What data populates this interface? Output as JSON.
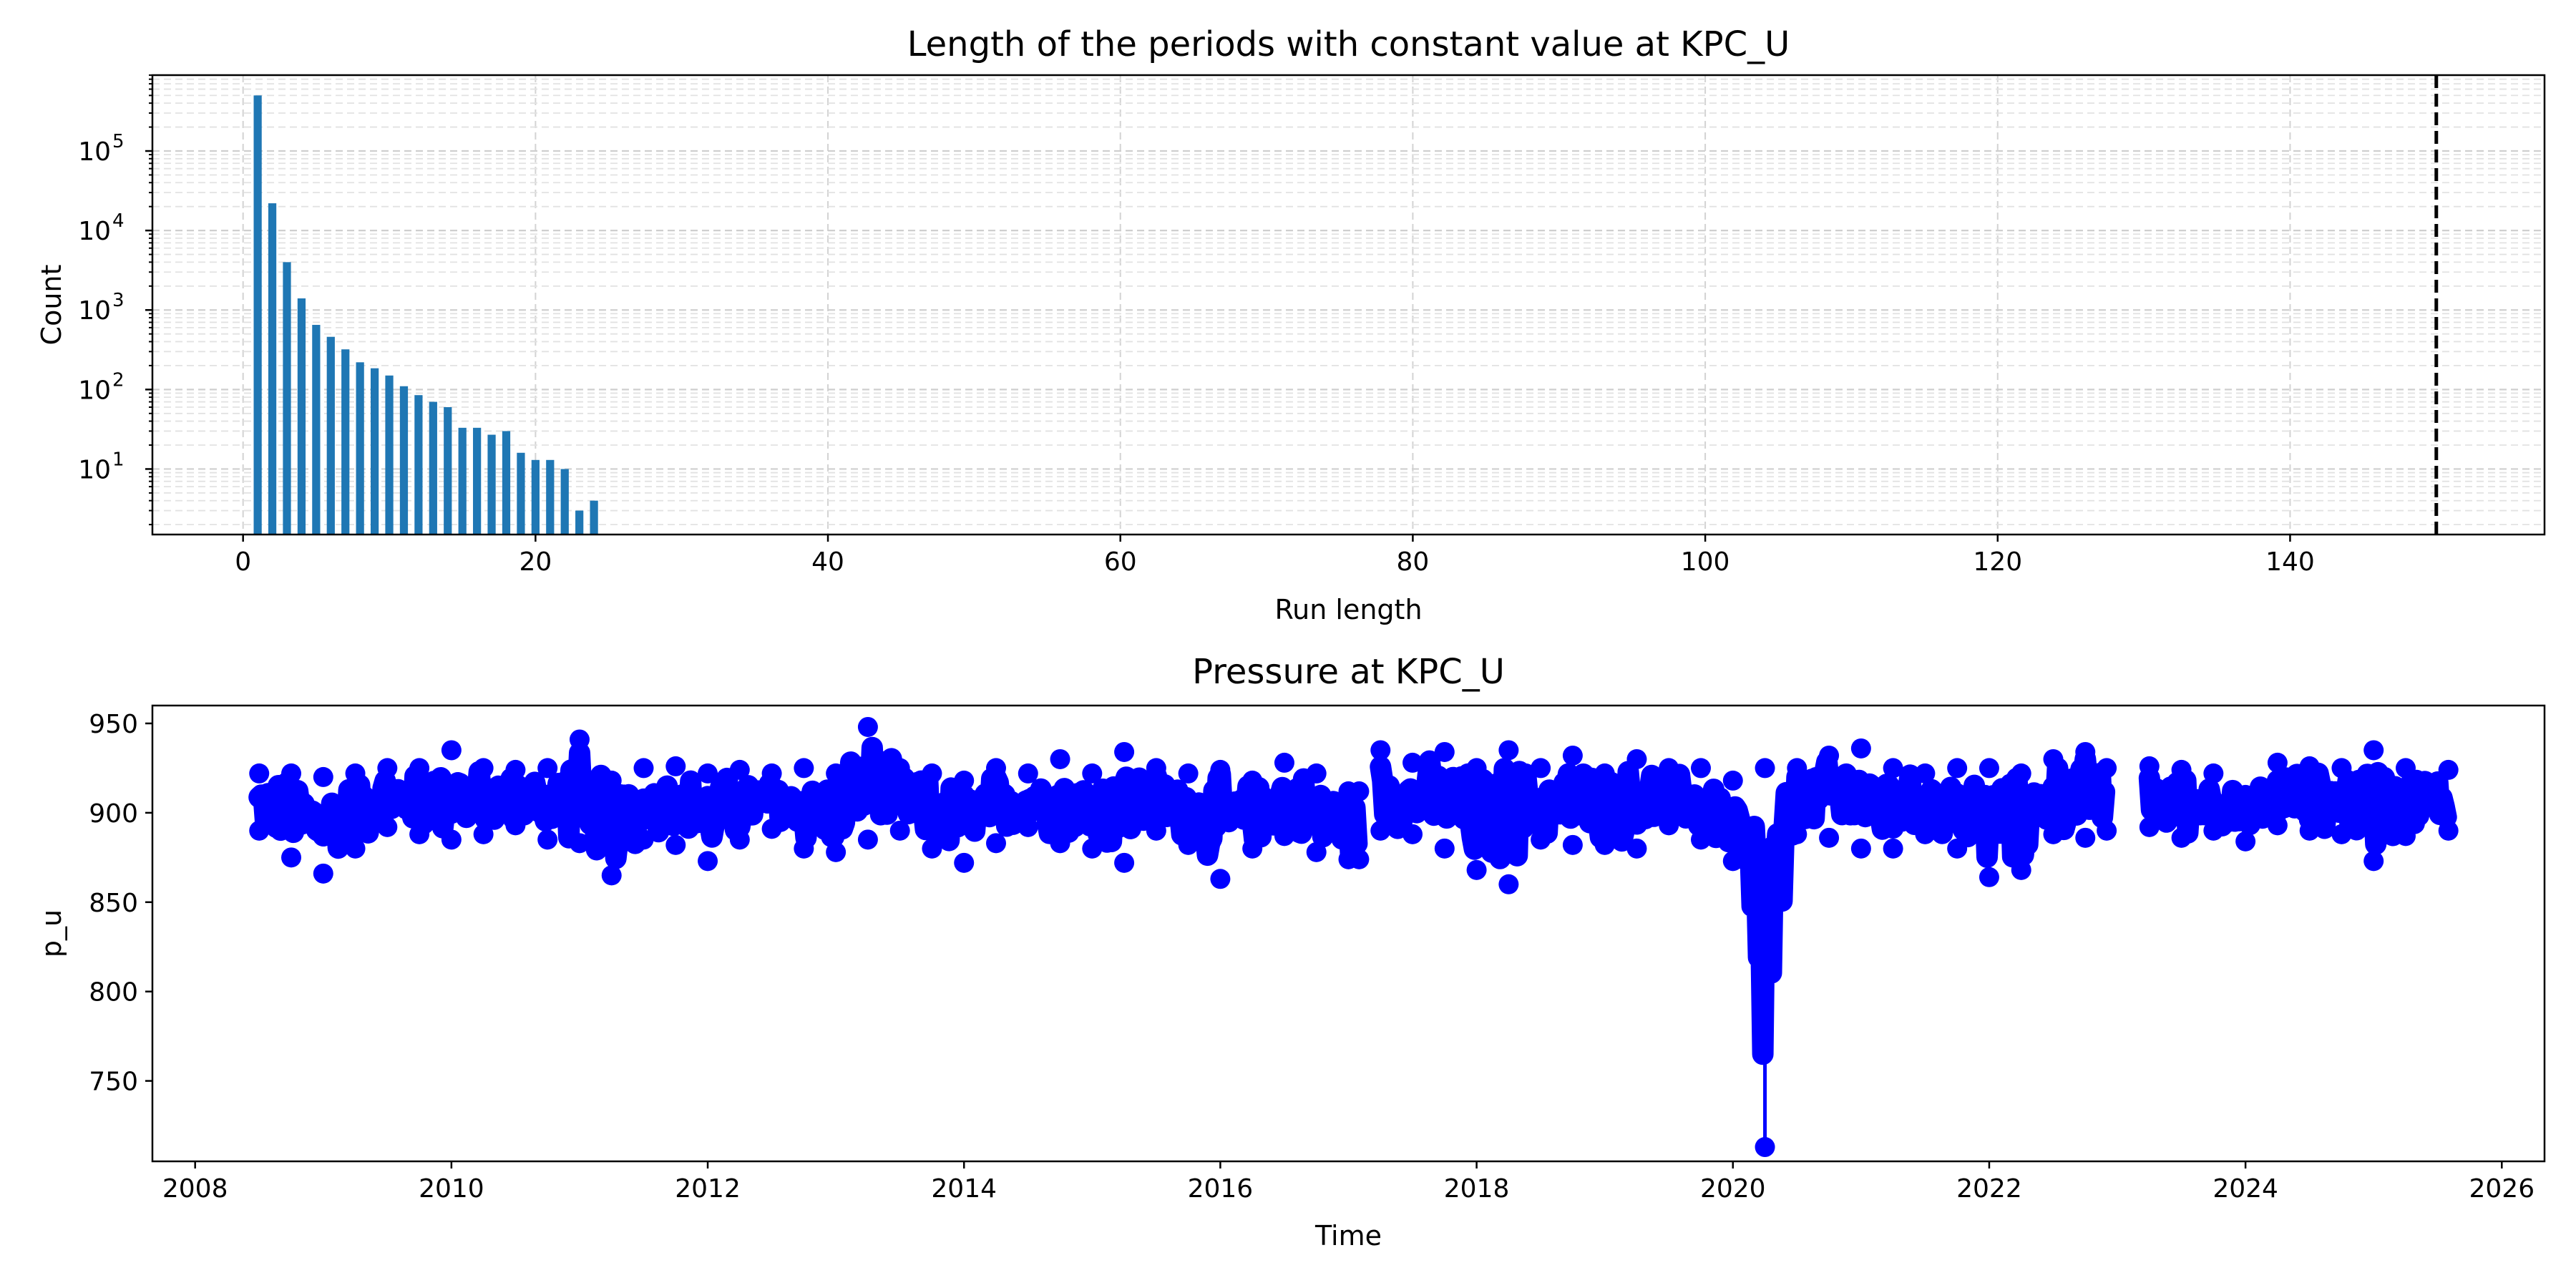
{
  "chart_data": [
    {
      "type": "bar",
      "title": "Length of the periods with constant value at KPC_U",
      "xlabel": "Run length",
      "ylabel": "Count",
      "yscale": "log",
      "xlim": [
        -6.2,
        157.4
      ],
      "ylim": [
        1.5,
        900000
      ],
      "xticks": [
        0,
        20,
        40,
        60,
        80,
        100,
        120,
        140
      ],
      "yticks": [
        {
          "value": 10,
          "base": "10",
          "exp": "1"
        },
        {
          "value": 100,
          "base": "10",
          "exp": "2"
        },
        {
          "value": 1000,
          "base": "10",
          "exp": "3"
        },
        {
          "value": 10000,
          "base": "10",
          "exp": "4"
        },
        {
          "value": 100000,
          "base": "10",
          "exp": "5"
        }
      ],
      "grid": true,
      "bar_color": "#1f77b4",
      "x": [
        1,
        2,
        3,
        4,
        5,
        6,
        7,
        8,
        9,
        10,
        11,
        12,
        13,
        14,
        15,
        16,
        17,
        18,
        19,
        20,
        21,
        22,
        23,
        24
      ],
      "values": [
        500000,
        22000,
        4000,
        1400,
        650,
        460,
        320,
        220,
        185,
        150,
        110,
        85,
        70,
        60,
        33,
        33,
        27,
        30,
        16,
        13,
        13,
        10,
        3,
        4
      ],
      "vline": {
        "x": 150,
        "color": "#000000",
        "style": "dashed"
      }
    },
    {
      "type": "line",
      "title": "Pressure at KPC_U",
      "xlabel": "Time",
      "ylabel": "p_u",
      "xlim": [
        "2007-09-01",
        "2026-05-01"
      ],
      "ylim": [
        705,
        960
      ],
      "xticks": [
        "2008",
        "2010",
        "2012",
        "2014",
        "2016",
        "2018",
        "2020",
        "2022",
        "2024",
        "2026"
      ],
      "yticks": [
        750,
        800,
        850,
        900,
        950
      ],
      "grid": false,
      "line_color": "#0000ff",
      "marker": "circle",
      "envelope": [
        {
          "x": "2008-07",
          "min": 890,
          "max": 922
        },
        {
          "x": "2008-10",
          "min": 875,
          "max": 922
        },
        {
          "x": "2009-01",
          "min": 866,
          "max": 920
        },
        {
          "x": "2009-04",
          "min": 880,
          "max": 922
        },
        {
          "x": "2009-07",
          "min": 892,
          "max": 925
        },
        {
          "x": "2009-10",
          "min": 888,
          "max": 925
        },
        {
          "x": "2010-01",
          "min": 885,
          "max": 935
        },
        {
          "x": "2010-04",
          "min": 888,
          "max": 925
        },
        {
          "x": "2010-07",
          "min": 893,
          "max": 924
        },
        {
          "x": "2010-10",
          "min": 885,
          "max": 925
        },
        {
          "x": "2011-01",
          "min": 883,
          "max": 941
        },
        {
          "x": "2011-04",
          "min": 865,
          "max": 918
        },
        {
          "x": "2011-07",
          "min": 885,
          "max": 925
        },
        {
          "x": "2011-10",
          "min": 882,
          "max": 926
        },
        {
          "x": "2012-01",
          "min": 873,
          "max": 922
        },
        {
          "x": "2012-04",
          "min": 885,
          "max": 924
        },
        {
          "x": "2012-07",
          "min": 891,
          "max": 922
        },
        {
          "x": "2012-10",
          "min": 880,
          "max": 925
        },
        {
          "x": "2013-01",
          "min": 878,
          "max": 922
        },
        {
          "x": "2013-04",
          "min": 885,
          "max": 948
        },
        {
          "x": "2013-07",
          "min": 890,
          "max": 925
        },
        {
          "x": "2013-10",
          "min": 880,
          "max": 922
        },
        {
          "x": "2014-01",
          "min": 872,
          "max": 918
        },
        {
          "x": "2014-04",
          "min": 883,
          "max": 925
        },
        {
          "x": "2014-07",
          "min": 892,
          "max": 922
        },
        {
          "x": "2014-10",
          "min": 883,
          "max": 930
        },
        {
          "x": "2015-01",
          "min": 880,
          "max": 922
        },
        {
          "x": "2015-04",
          "min": 872,
          "max": 934
        },
        {
          "x": "2015-07",
          "min": 890,
          "max": 925
        },
        {
          "x": "2015-10",
          "min": 882,
          "max": 922
        },
        {
          "x": "2016-01",
          "min": 863,
          "max": 924
        },
        {
          "x": "2016-04",
          "min": 880,
          "max": 918
        },
        {
          "x": "2016-07",
          "min": 887,
          "max": 928
        },
        {
          "x": "2016-10",
          "min": 878,
          "max": 922
        },
        {
          "x": "2017-01",
          "min": 874,
          "max": 912
        },
        {
          "x": "2017-02",
          "min": 874,
          "max": 912
        },
        {
          "x": "2017-03",
          "min": null,
          "max": null
        },
        {
          "x": "2017-04",
          "min": 890,
          "max": 935
        },
        {
          "x": "2017-07",
          "min": 888,
          "max": 928
        },
        {
          "x": "2017-10",
          "min": 880,
          "max": 934
        },
        {
          "x": "2018-01",
          "min": 868,
          "max": 925
        },
        {
          "x": "2018-04",
          "min": 860,
          "max": 935
        },
        {
          "x": "2018-07",
          "min": 885,
          "max": 925
        },
        {
          "x": "2018-10",
          "min": 882,
          "max": 932
        },
        {
          "x": "2019-01",
          "min": 882,
          "max": 922
        },
        {
          "x": "2019-04",
          "min": 880,
          "max": 930
        },
        {
          "x": "2019-07",
          "min": 893,
          "max": 925
        },
        {
          "x": "2019-10",
          "min": 885,
          "max": 925
        },
        {
          "x": "2020-01",
          "min": 873,
          "max": 918
        },
        {
          "x": "2020-04",
          "min": 713,
          "max": 925
        },
        {
          "x": "2020-07",
          "min": 888,
          "max": 925
        },
        {
          "x": "2020-10",
          "min": 886,
          "max": 932
        },
        {
          "x": "2021-01",
          "min": 880,
          "max": 936
        },
        {
          "x": "2021-04",
          "min": 880,
          "max": 925
        },
        {
          "x": "2021-07",
          "min": 888,
          "max": 922
        },
        {
          "x": "2021-10",
          "min": 880,
          "max": 925
        },
        {
          "x": "2022-01",
          "min": 864,
          "max": 925
        },
        {
          "x": "2022-04",
          "min": 868,
          "max": 922
        },
        {
          "x": "2022-07",
          "min": 888,
          "max": 930
        },
        {
          "x": "2022-10",
          "min": 886,
          "max": 934
        },
        {
          "x": "2022-12",
          "min": 890,
          "max": 925
        },
        {
          "x": "2023-01",
          "min": null,
          "max": null
        },
        {
          "x": "2023-04",
          "min": 892,
          "max": 926
        },
        {
          "x": "2023-07",
          "min": 886,
          "max": 924
        },
        {
          "x": "2023-10",
          "min": 890,
          "max": 922
        },
        {
          "x": "2024-01",
          "min": 884,
          "max": 910
        },
        {
          "x": "2024-04",
          "min": 893,
          "max": 928
        },
        {
          "x": "2024-07",
          "min": 890,
          "max": 926
        },
        {
          "x": "2024-10",
          "min": 888,
          "max": 925
        },
        {
          "x": "2025-01",
          "min": 873,
          "max": 935
        },
        {
          "x": "2025-04",
          "min": 887,
          "max": 925
        },
        {
          "x": "2025-08",
          "min": 890,
          "max": 924
        }
      ],
      "outlier": {
        "x": "2020-04",
        "y": 713
      }
    }
  ]
}
